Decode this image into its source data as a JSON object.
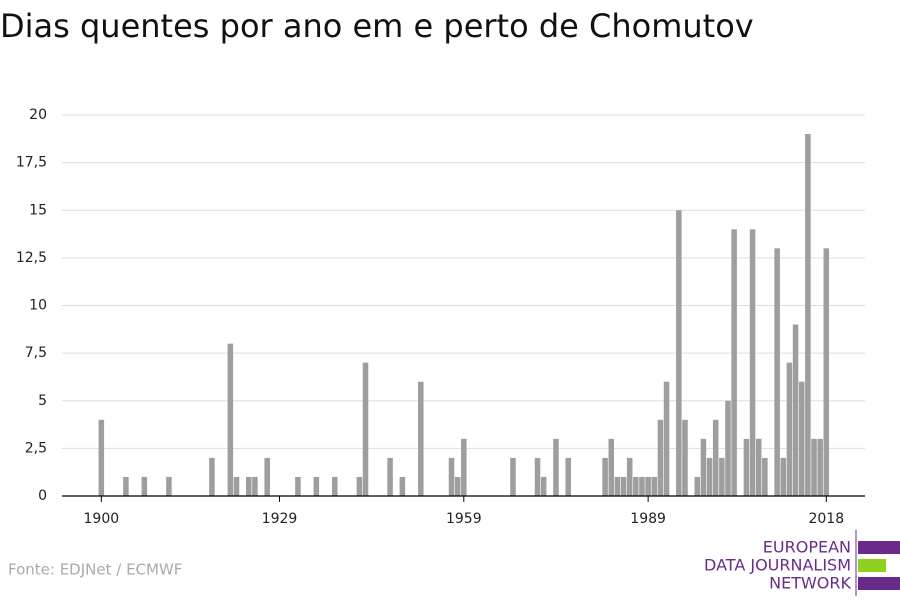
{
  "chart_data": {
    "type": "bar",
    "title": "Dias quentes por ano em e perto de Chomutov",
    "x": [
      1900,
      1904,
      1907,
      1911,
      1918,
      1921,
      1922,
      1924,
      1925,
      1927,
      1932,
      1935,
      1938,
      1942,
      1943,
      1947,
      1949,
      1952,
      1957,
      1958,
      1959,
      1967,
      1971,
      1972,
      1974,
      1976,
      1982,
      1983,
      1984,
      1985,
      1986,
      1987,
      1988,
      1989,
      1990,
      1991,
      1992,
      1994,
      1995,
      1997,
      1998,
      1999,
      2000,
      2001,
      2002,
      2003,
      2005,
      2006,
      2007,
      2008,
      2010,
      2011,
      2012,
      2013,
      2014,
      2015,
      2016,
      2017,
      2018
    ],
    "values": [
      4,
      1,
      1,
      1,
      2,
      8,
      1,
      1,
      1,
      2,
      1,
      1,
      1,
      1,
      7,
      2,
      1,
      6,
      2,
      1,
      3,
      2,
      2,
      1,
      3,
      2,
      2,
      3,
      1,
      1,
      2,
      1,
      1,
      1,
      1,
      4,
      6,
      15,
      4,
      1,
      3,
      2,
      4,
      2,
      5,
      14,
      3,
      14,
      3,
      2,
      13,
      2,
      7,
      9,
      6,
      19,
      3,
      3,
      13
    ],
    "color": "#9e9e9e",
    "xlim": [
      1893.6,
      2024.3
    ],
    "xticks": [
      1900,
      1929,
      1959,
      1989,
      2018
    ],
    "ylim": [
      0,
      20
    ],
    "yticks": [
      0,
      {
        "value": 2.5,
        "label": "2,5"
      },
      5,
      {
        "value": 7.5,
        "label": "7,5"
      },
      10,
      {
        "value": 12.5,
        "label": "12,5"
      },
      15,
      {
        "value": 17.5,
        "label": "17,5"
      },
      20
    ],
    "grid": true,
    "source": "Fonte: EDJNet / ECMWF",
    "logo": [
      "EUROPEAN",
      "DATA JOURNALISM",
      "NETWORK"
    ]
  }
}
